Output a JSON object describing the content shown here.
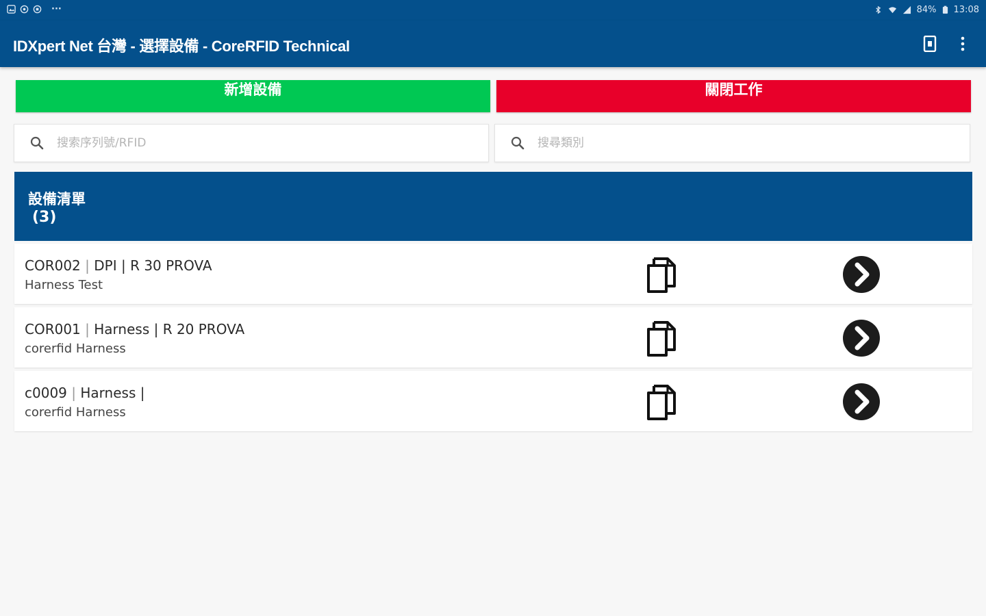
{
  "status_bar": {
    "left_icons": [
      "gallery-icon",
      "app-icon-1",
      "app-icon-2"
    ],
    "more": "···",
    "battery": "84%",
    "time": "13:08"
  },
  "app_bar": {
    "title": "IDXpert Net 台灣 - 選擇設備  - CoreRFID Technical",
    "actions": [
      "nfc-icon",
      "more-vert-icon"
    ]
  },
  "buttons": {
    "add_equipment": "新增設備",
    "close_job": "關閉工作"
  },
  "search": {
    "serial_placeholder": "搜索序列號/RFID",
    "category_placeholder": "搜尋類別"
  },
  "equipment_list": {
    "title": "設備清單",
    "count": "(3)",
    "items": [
      {
        "code": "COR002",
        "separator": "|",
        "rest": "DPI | R 30 PROVA",
        "subtitle": "Harness Test"
      },
      {
        "code": "COR001",
        "separator": "|",
        "rest": "Harness | R 20 PROVA",
        "subtitle": "corerfid Harness"
      },
      {
        "code": "c0009",
        "separator": "|",
        "rest": "Harness |",
        "subtitle": "corerfid Harness"
      }
    ]
  },
  "colors": {
    "primary": "#04508c",
    "add_button": "#00c853",
    "close_button": "#e8002a",
    "background": "#f7f7f7"
  }
}
